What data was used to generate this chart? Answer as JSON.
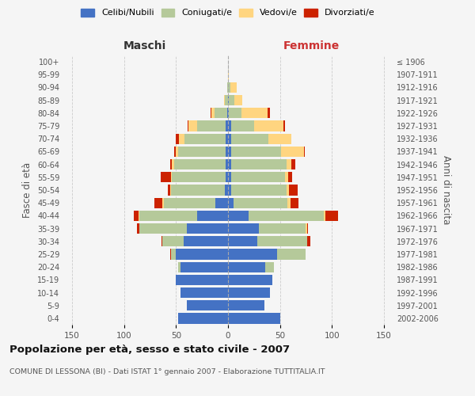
{
  "age_groups": [
    "0-4",
    "5-9",
    "10-14",
    "15-19",
    "20-24",
    "25-29",
    "30-34",
    "35-39",
    "40-44",
    "45-49",
    "50-54",
    "55-59",
    "60-64",
    "65-69",
    "70-74",
    "75-79",
    "80-84",
    "85-89",
    "90-94",
    "95-99",
    "100+"
  ],
  "birth_years": [
    "2002-2006",
    "1997-2001",
    "1992-1996",
    "1987-1991",
    "1982-1986",
    "1977-1981",
    "1972-1976",
    "1967-1971",
    "1962-1966",
    "1957-1961",
    "1952-1956",
    "1947-1951",
    "1942-1946",
    "1937-1941",
    "1932-1936",
    "1927-1931",
    "1922-1926",
    "1917-1921",
    "1912-1916",
    "1907-1911",
    "≤ 1906"
  ],
  "male": {
    "celibi": [
      48,
      40,
      46,
      50,
      46,
      50,
      43,
      40,
      30,
      12,
      3,
      2,
      2,
      2,
      2,
      2,
      1,
      0,
      0,
      0,
      0
    ],
    "coniugati": [
      0,
      0,
      0,
      0,
      2,
      5,
      20,
      45,
      55,
      50,
      52,
      52,
      50,
      46,
      40,
      28,
      12,
      3,
      1,
      0,
      0
    ],
    "vedovi": [
      0,
      0,
      0,
      0,
      0,
      0,
      0,
      0,
      1,
      1,
      1,
      1,
      2,
      2,
      5,
      8,
      3,
      1,
      0,
      0,
      0
    ],
    "divorziati": [
      0,
      0,
      0,
      0,
      0,
      1,
      1,
      3,
      5,
      8,
      2,
      10,
      2,
      2,
      3,
      1,
      1,
      0,
      0,
      0,
      0
    ]
  },
  "female": {
    "nubili": [
      50,
      35,
      40,
      43,
      36,
      47,
      28,
      30,
      20,
      5,
      3,
      3,
      3,
      3,
      3,
      3,
      1,
      1,
      0,
      0,
      0
    ],
    "coniugate": [
      0,
      0,
      0,
      0,
      8,
      28,
      48,
      45,
      72,
      52,
      53,
      52,
      53,
      48,
      36,
      22,
      12,
      5,
      2,
      0,
      0
    ],
    "vedove": [
      0,
      0,
      0,
      0,
      0,
      0,
      0,
      1,
      2,
      3,
      3,
      3,
      5,
      22,
      22,
      28,
      25,
      8,
      6,
      1,
      0
    ],
    "divorziate": [
      0,
      0,
      0,
      0,
      0,
      0,
      3,
      1,
      12,
      8,
      8,
      4,
      4,
      1,
      0,
      2,
      2,
      0,
      0,
      0,
      0
    ]
  },
  "colors": {
    "celibi": "#4472C4",
    "coniugati": "#b5c99a",
    "vedovi": "#FFD580",
    "divorziati": "#CC2200"
  },
  "title": "Popolazione per età, sesso e stato civile - 2007",
  "subtitle": "COMUNE DI LESSONA (BI) - Dati ISTAT 1° gennaio 2007 - Elaborazione TUTTITALIA.IT",
  "xlabel_left": "Maschi",
  "xlabel_right": "Femmine",
  "ylabel_left": "Fasce di età",
  "ylabel_right": "Anni di nascita",
  "xlim": 160,
  "background_color": "#f5f5f5",
  "grid_color": "#cccccc"
}
